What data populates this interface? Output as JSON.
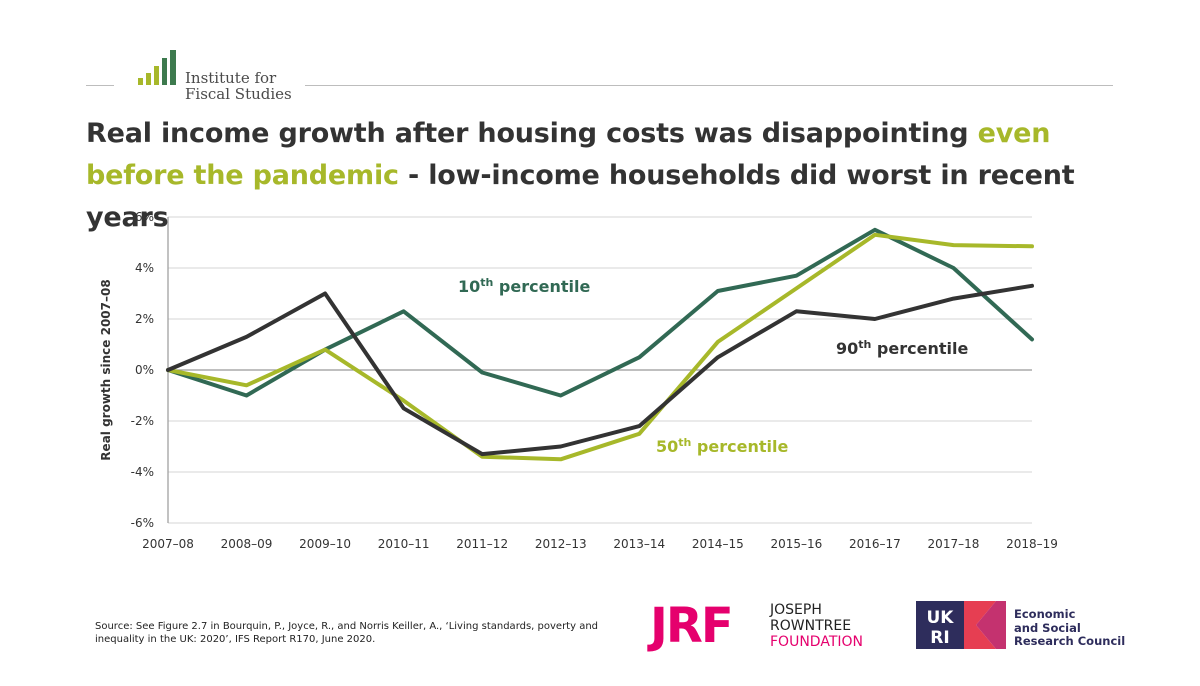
{
  "header": {
    "logo_line1": "Institute for",
    "logo_line2": "Fiscal Studies",
    "headline_part1": "Real income growth after housing costs was disappointing ",
    "headline_highlight": "even before the pandemic",
    "headline_part2": " - low-income households did worst in recent years"
  },
  "colors": {
    "p10": "#316954",
    "p50": "#a7b82a",
    "p90": "#333333",
    "highlight": "#a7b82a",
    "jrf_pink": "#e5006d",
    "ukri_navy": "#2e2d5c"
  },
  "chart_data": {
    "type": "line",
    "x": [
      "2007–08",
      "2008–09",
      "2009–10",
      "2010–11",
      "2011–12",
      "2012–13",
      "2013–14",
      "2014–15",
      "2015–16",
      "2016–17",
      "2017–18",
      "2018–19"
    ],
    "series": [
      {
        "name": "10th percentile",
        "color": "#316954",
        "values": [
          0,
          -1.0,
          0.8,
          2.3,
          -0.1,
          -1.0,
          0.5,
          3.1,
          3.7,
          5.5,
          4.0,
          1.2
        ]
      },
      {
        "name": "50th percentile",
        "color": "#a7b82a",
        "values": [
          0,
          -0.6,
          0.8,
          -1.2,
          -3.4,
          -3.5,
          -2.5,
          1.1,
          3.2,
          5.3,
          4.9,
          4.85
        ]
      },
      {
        "name": "90th percentile",
        "color": "#333333",
        "values": [
          0,
          1.3,
          3.0,
          -1.5,
          -3.3,
          -3.0,
          -2.2,
          0.5,
          2.3,
          2.0,
          2.8,
          3.3
        ]
      }
    ],
    "ylabel": "Real growth  since 2007–08",
    "ylim": [
      -6,
      6
    ],
    "yticks": [
      -6,
      -4,
      -2,
      0,
      2,
      4,
      6
    ],
    "ytick_labels": [
      "-6%",
      "-4%",
      "-2%",
      "0%",
      "2%",
      "4%",
      "6%"
    ],
    "grid": true,
    "annotations": [
      {
        "base": "10",
        "sup": "th",
        "rest": " percentile",
        "series": "10th percentile"
      },
      {
        "base": "50",
        "sup": "th",
        "rest": " percentile",
        "series": "50th percentile"
      },
      {
        "base": "90",
        "sup": "th",
        "rest": " percentile",
        "series": "90th percentile"
      }
    ]
  },
  "footer": {
    "source": "Source: See Figure 2.7 in Bourquin, P., Joyce, R., and  Norris Keiller, A., ‘Living standards, poverty and inequality in the UK: 2020’, IFS Report R170, June 2020.",
    "jrf_mark": "JRF",
    "jrf_line1": "JOSEPH",
    "jrf_line2": "ROWNTREE",
    "jrf_line3": "FOUNDATION",
    "ukri_mark": "UKRI",
    "esrc_line1": "Economic",
    "esrc_line2": "and Social",
    "esrc_line3": "Research Council"
  }
}
